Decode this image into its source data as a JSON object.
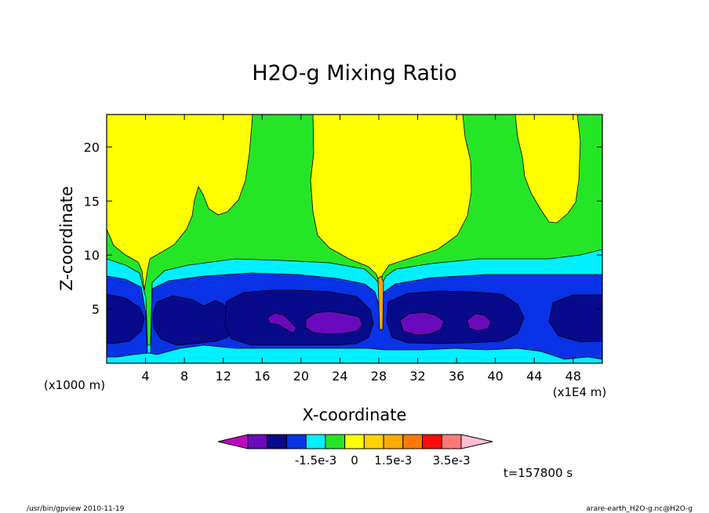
{
  "chart_data": {
    "type": "heatmap",
    "title": "H2O-g Mixing Ratio",
    "xlabel": "X-coordinate",
    "ylabel": "Z-coordinate",
    "x_unit_left": "(x1000 m)",
    "x_unit_right": "(x1E4 m)",
    "xlim": [
      0,
      51
    ],
    "ylim": [
      0,
      23
    ],
    "x_ticks": [
      4,
      8,
      12,
      16,
      20,
      24,
      28,
      32,
      36,
      40,
      44,
      48
    ],
    "y_ticks": [
      5,
      10,
      15,
      20
    ],
    "colorbar": {
      "colors": [
        "#ba0abe",
        "#6a0abe",
        "#080a8c",
        "#0a32e6",
        "#00f0ff",
        "#24e626",
        "#ffff00",
        "#ffd200",
        "#ffaa00",
        "#ff7800",
        "#ff0a0a",
        "#ff7878",
        "#ffbed2"
      ],
      "labels": [
        "-1.5e-3",
        "0",
        "1.5e-3",
        "3.5e-3"
      ],
      "label_positions": [
        3.5,
        5.5,
        7.5,
        10.5
      ]
    },
    "time_label": "t=157800 s"
  },
  "footer": {
    "left": "/usr/bin/gpview  2010-11-19",
    "right": "arare-earth_H2O-g.nc@H2O-g"
  }
}
